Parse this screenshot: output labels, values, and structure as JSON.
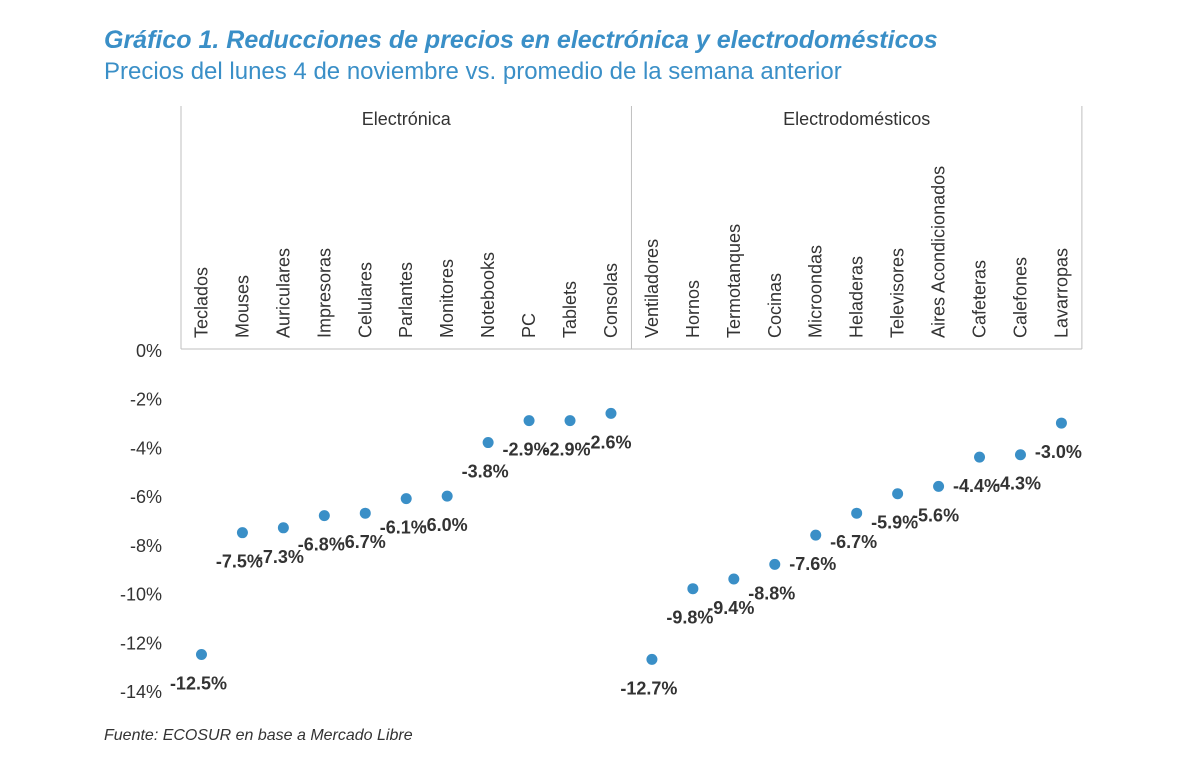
{
  "title": "Gráfico 1. Reducciones de precios en electrónica y electrodomésticos",
  "subtitle": "Precios del lunes 4 de noviembre vs. promedio de la semana anterior",
  "source": "Fuente: ECOSUR en base a Mercado Libre",
  "colors": {
    "marker": "#3a8fc7",
    "title": "#3a8fc7",
    "grid": "#bfbfbf",
    "text": "#333333"
  },
  "chart_data": {
    "type": "scatter",
    "groups": [
      {
        "name": "Electrónica",
        "categories": [
          "Teclados",
          "Mouses",
          "Auriculares",
          "Impresoras",
          "Celulares",
          "Parlantes",
          "Monitores",
          "Notebooks",
          "PC",
          "Tablets",
          "Consolas"
        ],
        "values": [
          -12.5,
          -7.5,
          -7.3,
          -6.8,
          -6.7,
          -6.1,
          -6.0,
          -3.8,
          -2.9,
          -2.9,
          -2.6
        ],
        "labels": [
          "-12.5%",
          "-7.5%",
          "-7.3%",
          "-6.8%",
          "-6.7%",
          "-6.1%",
          "-6.0%",
          "-3.8%",
          "-2.9%",
          "-2.9%",
          "-2.6%"
        ]
      },
      {
        "name": "Electrodomésticos",
        "categories": [
          "Ventiladores",
          "Hornos",
          "Termotanques",
          "Cocinas",
          "Microondas",
          "Heladeras",
          "Televisores",
          "Aires Acondicionados",
          "Cafeteras",
          "Calefones",
          "Lavarropas"
        ],
        "values": [
          -12.7,
          -9.8,
          -9.4,
          -8.8,
          -7.6,
          -6.7,
          -5.9,
          -5.6,
          -4.4,
          -4.3,
          -3.0
        ],
        "labels": [
          "-12.7%",
          "-9.8%",
          "-9.4%",
          "-8.8%",
          "-7.6%",
          "-6.7%",
          "-5.9%",
          "-5.6%",
          "-4.4%",
          "-4.3%",
          "-3.0%"
        ]
      }
    ],
    "ytick_labels": [
      "0%",
      "-2%",
      "-4%",
      "-6%",
      "-8%",
      "-10%",
      "-12%",
      "-14%"
    ],
    "yticks": [
      0,
      -2,
      -4,
      -6,
      -8,
      -10,
      -12,
      -14
    ],
    "ylim": [
      -14,
      0
    ],
    "grid": false,
    "legend": "none",
    "data_labels": "below-left"
  }
}
